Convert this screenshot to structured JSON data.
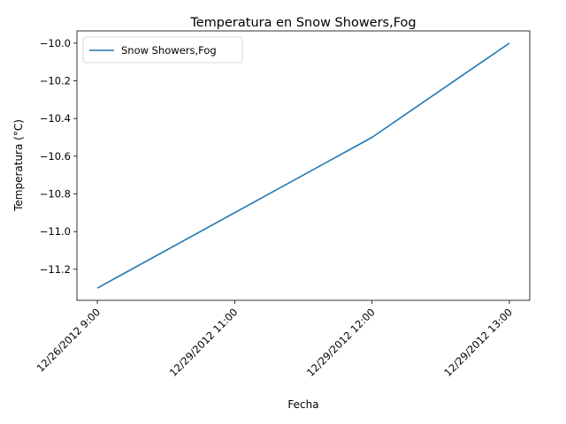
{
  "chart_data": {
    "type": "line",
    "title": "Temperatura en Snow Showers,Fog",
    "xlabel": "Fecha",
    "ylabel": "Temperatura (°C)",
    "categories": [
      "12/26/2012 9:00",
      "12/29/2012 11:00",
      "12/29/2012 12:00",
      "12/29/2012 13:00"
    ],
    "series": [
      {
        "name": "Snow Showers,Fog",
        "values": [
          -11.3,
          -10.9,
          -10.5,
          -10.0
        ],
        "color": "#1f77b4"
      }
    ],
    "yticks": [
      -11.2,
      -11.0,
      -10.8,
      -10.6,
      -10.4,
      -10.2,
      -10.0
    ],
    "ytick_labels": [
      "−11.2",
      "−11.0",
      "−10.8",
      "−10.6",
      "−10.4",
      "−10.2",
      "−10.0"
    ],
    "ylim": [
      -11.365,
      -9.935
    ],
    "grid": false,
    "legend": "upper-left"
  }
}
